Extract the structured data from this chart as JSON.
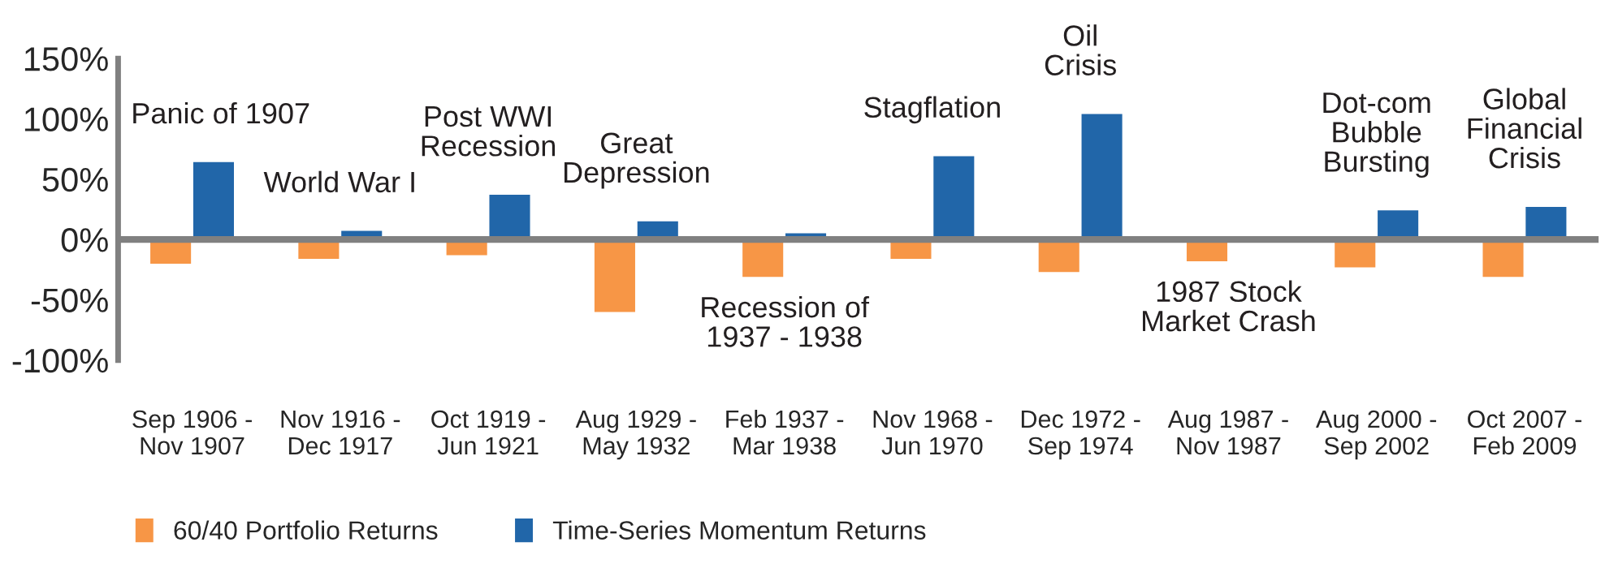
{
  "chart_data": {
    "type": "bar",
    "categories": [
      "Sep 1906 -\nNov 1907",
      "Nov 1916 -\nDec 1917",
      "Oct 1919 -\nJun 1921",
      "Aug 1929 -\nMay 1932",
      "Feb 1937 -\nMar 1938",
      "Nov 1968 -\nJun 1970",
      "Dec 1972 -\nSep 1974",
      "Aug 1987 -\nNov 1987",
      "Aug 2000 -\nSep 2002",
      "Oct 2007 -\nFeb 2009"
    ],
    "series": [
      {
        "name": "60/40 Portfolio Returns",
        "color": "#f79646",
        "values": [
          -21,
          -17,
          -14,
          -61,
          -32,
          -17,
          -28,
          -19,
          -24,
          -32
        ]
      },
      {
        "name": "Time-Series Momentum Returns",
        "color": "#2166a9",
        "values": [
          65,
          8,
          38,
          16,
          6,
          70,
          105,
          -2,
          25,
          28
        ]
      }
    ],
    "ylim": [
      -100,
      150
    ],
    "yticks": [
      {
        "value": -100,
        "label": "-100%"
      },
      {
        "value": -50,
        "label": "-50%"
      },
      {
        "value": 0,
        "label": "0%"
      },
      {
        "value": 50,
        "label": "50%"
      },
      {
        "value": 100,
        "label": "100%"
      },
      {
        "value": 150,
        "label": "150%"
      }
    ],
    "ref_lines": [
      {
        "axis": "y",
        "value": 0,
        "color": "#808080"
      }
    ],
    "annotations": [
      "Panic of 1907",
      "World War I",
      "Post WWI\nRecession",
      "Great\nDepression",
      "Recession of\n1937 - 1938",
      "Stagflation",
      "Oil\nCrisis",
      "1987 Stock\nMarket Crash",
      "Dot-com\nBubble\nBursting",
      "Global\nFinancial\nCrisis"
    ],
    "grid": false,
    "legend": "bottom left"
  }
}
